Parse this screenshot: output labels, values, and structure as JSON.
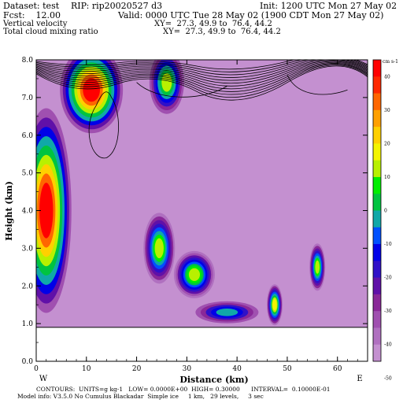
{
  "header": {
    "dataset": "Dataset: test",
    "rip": "RIP: rip20020527 d3",
    "init": "Init: 1200 UTC Mon 27 May 02",
    "fcst": "Fcst:    12.00",
    "valid": "Valid: 0000 UTC Tue 28 May 02 (1900 CDT Mon 27 May 02)",
    "field1": "Vertical velocity",
    "xy1": "XY=  27.3, 49.9 to  76.4, 44.2",
    "field2": "Total cloud mixing ratio",
    "xy2": "XY=  27.3, 49.9 to  76.4, 44.2"
  },
  "footer": {
    "line1": "CONTOURS:  UNITS=g kg-1   LOW= 0.0000E+00  HIGH= 0.30000      INTERVAL=  0.10000E-01",
    "line2": "Model info: V3.5.0 No Cumulus Blackadar  Simple ice     1 km,   29 levels,     3 sec"
  },
  "chart_data": {
    "type": "heatmap",
    "title": "",
    "xlabel": "Distance (km)",
    "ylabel": "Height (km)",
    "xlim": [
      0,
      66
    ],
    "ylim": [
      0,
      8
    ],
    "x_ticks": [
      0,
      10,
      20,
      30,
      40,
      50,
      60
    ],
    "y_ticks": [
      "0.0",
      "1.0",
      "2.0",
      "3.0",
      "4.0",
      "5.0",
      "6.0",
      "7.0",
      "8.0"
    ],
    "x_end_labels": {
      "left": "W",
      "right": "E"
    },
    "colorbar": {
      "units": "cm s-1",
      "labels": [
        "40",
        "30",
        "20",
        "10",
        "0",
        "-10",
        "-20",
        "-30",
        "-40",
        "-50"
      ],
      "colors": [
        "#ff0000",
        "#ff2800",
        "#ff6600",
        "#ffa000",
        "#ffd000",
        "#f4f400",
        "#b8f000",
        "#00ee00",
        "#00c440",
        "#10a8a8",
        "#0050ff",
        "#0000e8",
        "#3010c8",
        "#6010a8",
        "#8a2898",
        "#a050b0",
        "#b070c0",
        "#c490d0"
      ]
    },
    "terrain_height_km": 0.9,
    "background_value": -50,
    "features": [
      {
        "label": "updraft",
        "x": 2,
        "y": 4.0,
        "value": 45
      },
      {
        "label": "updraft",
        "x": 11,
        "y": 7.2,
        "value": 45
      },
      {
        "label": "updraft",
        "x": 26,
        "y": 7.4,
        "value": 12
      },
      {
        "label": "updraft",
        "x": 24.5,
        "y": 3.0,
        "value": 8
      },
      {
        "label": "updraft",
        "x": 31.5,
        "y": 2.3,
        "value": 12
      },
      {
        "label": "updraft",
        "x": 47.5,
        "y": 1.5,
        "value": 15
      },
      {
        "label": "updraft",
        "x": 56,
        "y": 2.5,
        "value": 12
      },
      {
        "label": "updraft",
        "x": 38,
        "y": 1.3,
        "value": -5
      }
    ]
  }
}
